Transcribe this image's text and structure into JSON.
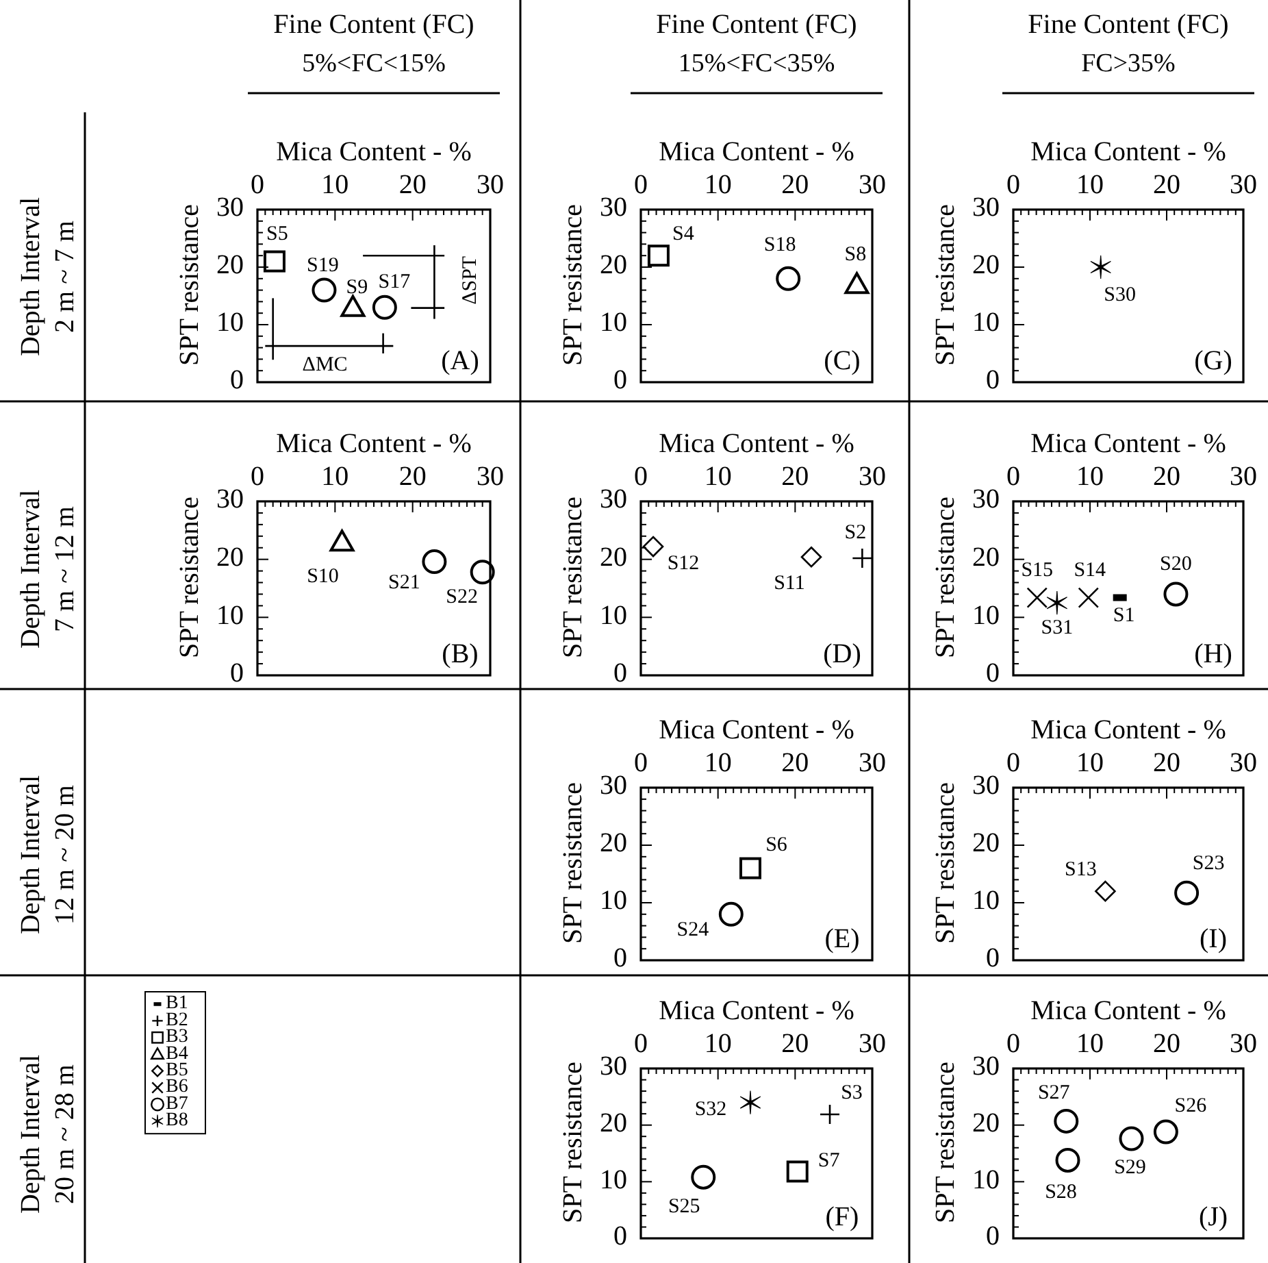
{
  "chart_data": [
    {
      "type": "scatter",
      "title": "Fine Content (FC)",
      "subtitle": "5%<FC<15%",
      "xlabel": "Mica Content - %",
      "ylabel": "SPT resistance",
      "xlim": [
        0,
        30
      ],
      "ylim": [
        0,
        30
      ],
      "xticks": [
        0,
        {
          "value": 1,
          "label": null
        },
        {
          "value": 2,
          "label": null
        },
        {
          "value": 3,
          "label": null
        },
        {
          "value": 4,
          "label": null
        },
        {
          "value": 5,
          "label": null
        },
        {
          "value": 6,
          "label": null
        },
        {
          "value": 7,
          "label": null
        },
        {
          "value": 8,
          "label": null
        },
        {
          "value": 9,
          "label": null
        },
        10,
        {
          "value": 11,
          "label": null
        },
        {
          "value": 12,
          "label": null
        },
        {
          "value": 13,
          "label": null
        },
        {
          "value": 14,
          "label": null
        },
        {
          "value": 15,
          "label": null
        },
        {
          "value": 16,
          "label": null
        },
        {
          "value": 17,
          "label": null
        },
        {
          "value": 18,
          "label": null
        },
        {
          "value": 19,
          "label": null
        },
        20,
        {
          "value": 21,
          "label": null
        },
        {
          "value": 22,
          "label": null
        },
        {
          "value": 23,
          "label": null
        },
        {
          "value": 24,
          "label": null
        },
        {
          "value": 25,
          "label": null
        },
        {
          "value": 26,
          "label": null
        },
        {
          "value": 27,
          "label": null
        },
        {
          "value": 28,
          "label": null
        },
        {
          "value": 29,
          "label": null
        },
        30
      ],
      "yticks": [
        0,
        {
          "value": 2,
          "label": null
        },
        {
          "value": 4,
          "label": null
        },
        {
          "value": 6,
          "label": null
        },
        {
          "value": 8,
          "label": null
        },
        10,
        {
          "value": 12,
          "label": null
        },
        {
          "value": 14,
          "label": null
        },
        {
          "value": 16,
          "label": null
        },
        {
          "value": 18,
          "label": null
        },
        20,
        {
          "value": 22,
          "label": null
        },
        {
          "value": 24,
          "label": null
        },
        {
          "value": 26,
          "label": null
        },
        {
          "value": 28,
          "label": null
        },
        30
      ],
      "series": [
        {
          "marker": "square",
          "color": "#000000",
          "x": [
            2.2
          ],
          "values": [
            21
          ],
          "value_labels": [
            "S5"
          ]
        },
        {
          "marker": "circle",
          "color": "#000000",
          "x": [
            8.6,
            16.4
          ],
          "values": [
            16,
            13
          ],
          "value_labels": [
            "S19",
            "S17"
          ]
        },
        {
          "marker": "triangle",
          "color": "#000000",
          "x": [
            12.3
          ],
          "values": [
            13
          ],
          "value_labels": [
            "S9"
          ]
        },
        {
          "type": "line",
          "marker": "none",
          "color": "#000000",
          "x": [
            1,
            17.5
          ],
          "values": [
            6.3,
            6.3
          ]
        },
        {
          "type": "line",
          "marker": "none",
          "color": "#000000",
          "x": [
            2,
            2
          ],
          "values": [
            3.9,
            14.6
          ]
        },
        {
          "type": "line",
          "marker": "none",
          "color": "#000000",
          "x": [
            16.2,
            16.2
          ],
          "values": [
            5,
            8.5
          ]
        },
        {
          "type": "line",
          "marker": "none",
          "color": "#000000",
          "x": [
            22.8,
            22.8
          ],
          "values": [
            11,
            23.8
          ]
        },
        {
          "type": "line",
          "marker": "none",
          "color": "#000000",
          "x": [
            13.6,
            24.1
          ],
          "values": [
            22,
            22
          ]
        },
        {
          "type": "line",
          "marker": "none",
          "color": "#000000",
          "x": [
            19.8,
            24.1
          ],
          "values": [
            12.9,
            12.9
          ]
        }
      ],
      "annotations": [
        "Depth Interval",
        "2 m ~ 7 m",
        "ΔMC",
        "ΔSPT",
        "(A)"
      ]
    },
    {
      "type": "scatter",
      "title": "Fine Content (FC)",
      "subtitle": "15%<FC<35%",
      "xlabel": "Mica Content - %",
      "ylabel": "SPT resistance",
      "xlim": [
        0,
        30
      ],
      "ylim": [
        0,
        30
      ],
      "xticks": [
        0,
        {
          "value": 1,
          "label": null
        },
        {
          "value": 2,
          "label": null
        },
        {
          "value": 3,
          "label": null
        },
        {
          "value": 4,
          "label": null
        },
        {
          "value": 5,
          "label": null
        },
        {
          "value": 6,
          "label": null
        },
        {
          "value": 7,
          "label": null
        },
        {
          "value": 8,
          "label": null
        },
        {
          "value": 9,
          "label": null
        },
        10,
        {
          "value": 11,
          "label": null
        },
        {
          "value": 12,
          "label": null
        },
        {
          "value": 13,
          "label": null
        },
        {
          "value": 14,
          "label": null
        },
        {
          "value": 15,
          "label": null
        },
        {
          "value": 16,
          "label": null
        },
        {
          "value": 17,
          "label": null
        },
        {
          "value": 18,
          "label": null
        },
        {
          "value": 19,
          "label": null
        },
        20,
        {
          "value": 21,
          "label": null
        },
        {
          "value": 22,
          "label": null
        },
        {
          "value": 23,
          "label": null
        },
        {
          "value": 24,
          "label": null
        },
        {
          "value": 25,
          "label": null
        },
        {
          "value": 26,
          "label": null
        },
        {
          "value": 27,
          "label": null
        },
        {
          "value": 28,
          "label": null
        },
        {
          "value": 29,
          "label": null
        },
        30
      ],
      "yticks": [
        0,
        {
          "value": 2,
          "label": null
        },
        {
          "value": 4,
          "label": null
        },
        {
          "value": 6,
          "label": null
        },
        {
          "value": 8,
          "label": null
        },
        10,
        {
          "value": 12,
          "label": null
        },
        {
          "value": 14,
          "label": null
        },
        {
          "value": 16,
          "label": null
        },
        {
          "value": 18,
          "label": null
        },
        20,
        {
          "value": 22,
          "label": null
        },
        {
          "value": 24,
          "label": null
        },
        {
          "value": 26,
          "label": null
        },
        {
          "value": 28,
          "label": null
        },
        30
      ],
      "series": [
        {
          "marker": "square",
          "color": "#000000",
          "x": [
            2.3
          ],
          "values": [
            22
          ],
          "value_labels": [
            "S4"
          ]
        },
        {
          "marker": "circle",
          "color": "#000000",
          "x": [
            19.1
          ],
          "values": [
            18
          ],
          "value_labels": [
            "S18"
          ]
        },
        {
          "marker": "triangle",
          "color": "#000000",
          "x": [
            28
          ],
          "values": [
            17
          ],
          "value_labels": [
            "S8"
          ]
        }
      ],
      "annotations": [
        "(C)"
      ]
    },
    {
      "type": "scatter",
      "title": "Fine Content (FC)",
      "subtitle": "FC>35%",
      "xlabel": "Mica Content - %",
      "ylabel": "SPT resistance",
      "xlim": [
        0,
        30
      ],
      "ylim": [
        0,
        30
      ],
      "xticks": [
        0,
        {
          "value": 1,
          "label": null
        },
        {
          "value": 2,
          "label": null
        },
        {
          "value": 3,
          "label": null
        },
        {
          "value": 4,
          "label": null
        },
        {
          "value": 5,
          "label": null
        },
        {
          "value": 6,
          "label": null
        },
        {
          "value": 7,
          "label": null
        },
        {
          "value": 8,
          "label": null
        },
        {
          "value": 9,
          "label": null
        },
        10,
        {
          "value": 11,
          "label": null
        },
        {
          "value": 12,
          "label": null
        },
        {
          "value": 13,
          "label": null
        },
        {
          "value": 14,
          "label": null
        },
        {
          "value": 15,
          "label": null
        },
        {
          "value": 16,
          "label": null
        },
        {
          "value": 17,
          "label": null
        },
        {
          "value": 18,
          "label": null
        },
        {
          "value": 19,
          "label": null
        },
        20,
        {
          "value": 21,
          "label": null
        },
        {
          "value": 22,
          "label": null
        },
        {
          "value": 23,
          "label": null
        },
        {
          "value": 24,
          "label": null
        },
        {
          "value": 25,
          "label": null
        },
        {
          "value": 26,
          "label": null
        },
        {
          "value": 27,
          "label": null
        },
        {
          "value": 28,
          "label": null
        },
        {
          "value": 29,
          "label": null
        },
        30
      ],
      "yticks": [
        0,
        {
          "value": 2,
          "label": null
        },
        {
          "value": 4,
          "label": null
        },
        {
          "value": 6,
          "label": null
        },
        {
          "value": 8,
          "label": null
        },
        10,
        {
          "value": 12,
          "label": null
        },
        {
          "value": 14,
          "label": null
        },
        {
          "value": 16,
          "label": null
        },
        {
          "value": 18,
          "label": null
        },
        20,
        {
          "value": 22,
          "label": null
        },
        {
          "value": 24,
          "label": null
        },
        {
          "value": 26,
          "label": null
        },
        {
          "value": 28,
          "label": null
        },
        30
      ],
      "series": [
        {
          "marker": "cross",
          "color": "#000000",
          "x": [
            11.4
          ],
          "values": [
            20
          ],
          "value_labels": [
            "S30"
          ]
        }
      ],
      "annotations": [
        "(G)"
      ]
    },
    {
      "type": "scatter",
      "xlabel": "Mica Content - %",
      "ylabel": "SPT resistance",
      "xlim": [
        0,
        30
      ],
      "ylim": [
        0,
        30
      ],
      "xticks": [
        0,
        {
          "value": 1,
          "label": null
        },
        {
          "value": 2,
          "label": null
        },
        {
          "value": 3,
          "label": null
        },
        {
          "value": 4,
          "label": null
        },
        {
          "value": 5,
          "label": null
        },
        {
          "value": 6,
          "label": null
        },
        {
          "value": 7,
          "label": null
        },
        {
          "value": 8,
          "label": null
        },
        {
          "value": 9,
          "label": null
        },
        10,
        {
          "value": 11,
          "label": null
        },
        {
          "value": 12,
          "label": null
        },
        {
          "value": 13,
          "label": null
        },
        {
          "value": 14,
          "label": null
        },
        {
          "value": 15,
          "label": null
        },
        {
          "value": 16,
          "label": null
        },
        {
          "value": 17,
          "label": null
        },
        {
          "value": 18,
          "label": null
        },
        {
          "value": 19,
          "label": null
        },
        20,
        {
          "value": 21,
          "label": null
        },
        {
          "value": 22,
          "label": null
        },
        {
          "value": 23,
          "label": null
        },
        {
          "value": 24,
          "label": null
        },
        {
          "value": 25,
          "label": null
        },
        {
          "value": 26,
          "label": null
        },
        {
          "value": 27,
          "label": null
        },
        {
          "value": 28,
          "label": null
        },
        {
          "value": 29,
          "label": null
        },
        30
      ],
      "yticks": [
        0,
        {
          "value": 2,
          "label": null
        },
        {
          "value": 4,
          "label": null
        },
        {
          "value": 6,
          "label": null
        },
        {
          "value": 8,
          "label": null
        },
        10,
        {
          "value": 12,
          "label": null
        },
        {
          "value": 14,
          "label": null
        },
        {
          "value": 16,
          "label": null
        },
        {
          "value": 18,
          "label": null
        },
        20,
        {
          "value": 22,
          "label": null
        },
        {
          "value": 24,
          "label": null
        },
        {
          "value": 26,
          "label": null
        },
        {
          "value": 28,
          "label": null
        },
        30
      ],
      "series": [
        {
          "marker": "triangle",
          "color": "#000000",
          "x": [
            10.9
          ],
          "values": [
            23
          ],
          "value_labels": [
            "S10"
          ]
        },
        {
          "marker": "circle",
          "color": "#000000",
          "x": [
            22.8,
            29
          ],
          "values": [
            19.6,
            17.8
          ],
          "value_labels": [
            "S21",
            "S22"
          ]
        }
      ],
      "annotations": [
        "Depth Interval",
        "7 m ~ 12 m",
        "(B)"
      ]
    },
    {
      "type": "scatter",
      "xlabel": "Mica Content - %",
      "ylabel": "SPT resistance",
      "xlim": [
        0,
        30
      ],
      "ylim": [
        0,
        30
      ],
      "xticks": [
        0,
        {
          "value": 1,
          "label": null
        },
        {
          "value": 2,
          "label": null
        },
        {
          "value": 3,
          "label": null
        },
        {
          "value": 4,
          "label": null
        },
        {
          "value": 5,
          "label": null
        },
        {
          "value": 6,
          "label": null
        },
        {
          "value": 7,
          "label": null
        },
        {
          "value": 8,
          "label": null
        },
        {
          "value": 9,
          "label": null
        },
        10,
        {
          "value": 11,
          "label": null
        },
        {
          "value": 12,
          "label": null
        },
        {
          "value": 13,
          "label": null
        },
        {
          "value": 14,
          "label": null
        },
        {
          "value": 15,
          "label": null
        },
        {
          "value": 16,
          "label": null
        },
        {
          "value": 17,
          "label": null
        },
        {
          "value": 18,
          "label": null
        },
        {
          "value": 19,
          "label": null
        },
        20,
        {
          "value": 21,
          "label": null
        },
        {
          "value": 22,
          "label": null
        },
        {
          "value": 23,
          "label": null
        },
        {
          "value": 24,
          "label": null
        },
        {
          "value": 25,
          "label": null
        },
        {
          "value": 26,
          "label": null
        },
        {
          "value": 27,
          "label": null
        },
        {
          "value": 28,
          "label": null
        },
        {
          "value": 29,
          "label": null
        },
        30
      ],
      "yticks": [
        0,
        {
          "value": 2,
          "label": null
        },
        {
          "value": 4,
          "label": null
        },
        {
          "value": 6,
          "label": null
        },
        {
          "value": 8,
          "label": null
        },
        10,
        {
          "value": 12,
          "label": null
        },
        {
          "value": 14,
          "label": null
        },
        {
          "value": 16,
          "label": null
        },
        {
          "value": 18,
          "label": null
        },
        20,
        {
          "value": 22,
          "label": null
        },
        {
          "value": 24,
          "label": null
        },
        {
          "value": 26,
          "label": null
        },
        {
          "value": 28,
          "label": null
        },
        30
      ],
      "series": [
        {
          "marker": "diamond",
          "color": "#000000",
          "x": [
            1.6,
            22.1
          ],
          "values": [
            22.2,
            20.4
          ],
          "value_labels": [
            "S12",
            "S11"
          ]
        },
        {
          "marker": "plus",
          "color": "#000000",
          "x": [
            28.7
          ],
          "values": [
            20.2
          ],
          "value_labels": [
            "S2"
          ]
        }
      ],
      "annotations": [
        "(D)"
      ]
    },
    {
      "type": "scatter",
      "xlabel": "Mica Content - %",
      "ylabel": "SPT resistance",
      "xlim": [
        0,
        30
      ],
      "ylim": [
        0,
        30
      ],
      "xticks": [
        0,
        {
          "value": 1,
          "label": null
        },
        {
          "value": 2,
          "label": null
        },
        {
          "value": 3,
          "label": null
        },
        {
          "value": 4,
          "label": null
        },
        {
          "value": 5,
          "label": null
        },
        {
          "value": 6,
          "label": null
        },
        {
          "value": 7,
          "label": null
        },
        {
          "value": 8,
          "label": null
        },
        {
          "value": 9,
          "label": null
        },
        10,
        {
          "value": 11,
          "label": null
        },
        {
          "value": 12,
          "label": null
        },
        {
          "value": 13,
          "label": null
        },
        {
          "value": 14,
          "label": null
        },
        {
          "value": 15,
          "label": null
        },
        {
          "value": 16,
          "label": null
        },
        {
          "value": 17,
          "label": null
        },
        {
          "value": 18,
          "label": null
        },
        {
          "value": 19,
          "label": null
        },
        20,
        {
          "value": 21,
          "label": null
        },
        {
          "value": 22,
          "label": null
        },
        {
          "value": 23,
          "label": null
        },
        {
          "value": 24,
          "label": null
        },
        {
          "value": 25,
          "label": null
        },
        {
          "value": 26,
          "label": null
        },
        {
          "value": 27,
          "label": null
        },
        {
          "value": 28,
          "label": null
        },
        {
          "value": 29,
          "label": null
        },
        30
      ],
      "yticks": [
        0,
        {
          "value": 2,
          "label": null
        },
        {
          "value": 4,
          "label": null
        },
        {
          "value": 6,
          "label": null
        },
        {
          "value": 8,
          "label": null
        },
        10,
        {
          "value": 12,
          "label": null
        },
        {
          "value": 14,
          "label": null
        },
        {
          "value": 16,
          "label": null
        },
        {
          "value": 18,
          "label": null
        },
        20,
        {
          "value": 22,
          "label": null
        },
        {
          "value": 24,
          "label": null
        },
        {
          "value": 26,
          "label": null
        },
        {
          "value": 28,
          "label": null
        },
        30
      ],
      "series": [
        {
          "marker": "x",
          "color": "#000000",
          "x": [
            3.1,
            9.8
          ],
          "values": [
            13.4,
            13.4
          ],
          "value_labels": [
            "S15",
            "S14"
          ]
        },
        {
          "marker": "cross",
          "color": "#000000",
          "x": [
            5.7
          ],
          "values": [
            12.5
          ],
          "value_labels": [
            "S31"
          ]
        },
        {
          "color": "#000000",
          "x": [
            13.9
          ],
          "values": [
            13.4
          ],
          "value_labels": [
            "S1"
          ]
        },
        {
          "marker": "circle",
          "color": "#000000",
          "x": [
            21.2
          ],
          "values": [
            14
          ],
          "value_labels": [
            "S20"
          ]
        }
      ],
      "annotations": [
        "(H)"
      ]
    },
    {
      "type": "scatter",
      "xlabel": "Mica Content - %",
      "ylabel": "SPT resistance",
      "xlim": [
        0,
        30
      ],
      "ylim": [
        0,
        30
      ],
      "xticks": [
        0,
        {
          "value": 1,
          "label": null
        },
        {
          "value": 2,
          "label": null
        },
        {
          "value": 3,
          "label": null
        },
        {
          "value": 4,
          "label": null
        },
        {
          "value": 5,
          "label": null
        },
        {
          "value": 6,
          "label": null
        },
        {
          "value": 7,
          "label": null
        },
        {
          "value": 8,
          "label": null
        },
        {
          "value": 9,
          "label": null
        },
        10,
        {
          "value": 11,
          "label": null
        },
        {
          "value": 12,
          "label": null
        },
        {
          "value": 13,
          "label": null
        },
        {
          "value": 14,
          "label": null
        },
        {
          "value": 15,
          "label": null
        },
        {
          "value": 16,
          "label": null
        },
        {
          "value": 17,
          "label": null
        },
        {
          "value": 18,
          "label": null
        },
        {
          "value": 19,
          "label": null
        },
        20,
        {
          "value": 21,
          "label": null
        },
        {
          "value": 22,
          "label": null
        },
        {
          "value": 23,
          "label": null
        },
        {
          "value": 24,
          "label": null
        },
        {
          "value": 25,
          "label": null
        },
        {
          "value": 26,
          "label": null
        },
        {
          "value": 27,
          "label": null
        },
        {
          "value": 28,
          "label": null
        },
        {
          "value": 29,
          "label": null
        },
        30
      ],
      "yticks": [
        0,
        {
          "value": 2,
          "label": null
        },
        {
          "value": 4,
          "label": null
        },
        {
          "value": 6,
          "label": null
        },
        {
          "value": 8,
          "label": null
        },
        10,
        {
          "value": 12,
          "label": null
        },
        {
          "value": 14,
          "label": null
        },
        {
          "value": 16,
          "label": null
        },
        {
          "value": 18,
          "label": null
        },
        20,
        {
          "value": 22,
          "label": null
        },
        {
          "value": 24,
          "label": null
        },
        {
          "value": 26,
          "label": null
        },
        {
          "value": 28,
          "label": null
        },
        30
      ],
      "series": [
        {
          "marker": "square",
          "color": "#000000",
          "x": [
            14.2
          ],
          "values": [
            16
          ],
          "value_labels": [
            "S6"
          ]
        },
        {
          "marker": "circle",
          "color": "#000000",
          "x": [
            11.7
          ],
          "values": [
            8
          ],
          "value_labels": [
            "S24"
          ]
        }
      ],
      "annotations": [
        "Depth Interval",
        "12 m ~ 20 m",
        "(E)"
      ]
    },
    {
      "type": "scatter",
      "xlabel": "Mica Content - %",
      "ylabel": "SPT resistance",
      "xlim": [
        0,
        30
      ],
      "ylim": [
        0,
        30
      ],
      "xticks": [
        0,
        {
          "value": 1,
          "label": null
        },
        {
          "value": 2,
          "label": null
        },
        {
          "value": 3,
          "label": null
        },
        {
          "value": 4,
          "label": null
        },
        {
          "value": 5,
          "label": null
        },
        {
          "value": 6,
          "label": null
        },
        {
          "value": 7,
          "label": null
        },
        {
          "value": 8,
          "label": null
        },
        {
          "value": 9,
          "label": null
        },
        10,
        {
          "value": 11,
          "label": null
        },
        {
          "value": 12,
          "label": null
        },
        {
          "value": 13,
          "label": null
        },
        {
          "value": 14,
          "label": null
        },
        {
          "value": 15,
          "label": null
        },
        {
          "value": 16,
          "label": null
        },
        {
          "value": 17,
          "label": null
        },
        {
          "value": 18,
          "label": null
        },
        {
          "value": 19,
          "label": null
        },
        20,
        {
          "value": 21,
          "label": null
        },
        {
          "value": 22,
          "label": null
        },
        {
          "value": 23,
          "label": null
        },
        {
          "value": 24,
          "label": null
        },
        {
          "value": 25,
          "label": null
        },
        {
          "value": 26,
          "label": null
        },
        {
          "value": 27,
          "label": null
        },
        {
          "value": 28,
          "label": null
        },
        {
          "value": 29,
          "label": null
        },
        30
      ],
      "yticks": [
        0,
        {
          "value": 2,
          "label": null
        },
        {
          "value": 4,
          "label": null
        },
        {
          "value": 6,
          "label": null
        },
        {
          "value": 8,
          "label": null
        },
        10,
        {
          "value": 12,
          "label": null
        },
        {
          "value": 14,
          "label": null
        },
        {
          "value": 16,
          "label": null
        },
        {
          "value": 18,
          "label": null
        },
        20,
        {
          "value": 22,
          "label": null
        },
        {
          "value": 24,
          "label": null
        },
        {
          "value": 26,
          "label": null
        },
        {
          "value": 28,
          "label": null
        },
        30
      ],
      "series": [
        {
          "marker": "diamond",
          "color": "#000000",
          "x": [
            12
          ],
          "values": [
            12
          ],
          "value_labels": [
            "S13"
          ]
        },
        {
          "marker": "circle",
          "color": "#000000",
          "x": [
            22.6
          ],
          "values": [
            11.7
          ],
          "value_labels": [
            "S23"
          ]
        }
      ],
      "annotations": [
        "(I)"
      ]
    },
    {
      "type": "scatter",
      "xlabel": "Mica Content - %",
      "ylabel": "SPT resistance",
      "xlim": [
        0,
        30
      ],
      "ylim": [
        0,
        30
      ],
      "legend": "left",
      "xticks": [
        0,
        {
          "value": 1,
          "label": null
        },
        {
          "value": 2,
          "label": null
        },
        {
          "value": 3,
          "label": null
        },
        {
          "value": 4,
          "label": null
        },
        {
          "value": 5,
          "label": null
        },
        {
          "value": 6,
          "label": null
        },
        {
          "value": 7,
          "label": null
        },
        {
          "value": 8,
          "label": null
        },
        {
          "value": 9,
          "label": null
        },
        10,
        {
          "value": 11,
          "label": null
        },
        {
          "value": 12,
          "label": null
        },
        {
          "value": 13,
          "label": null
        },
        {
          "value": 14,
          "label": null
        },
        {
          "value": 15,
          "label": null
        },
        {
          "value": 16,
          "label": null
        },
        {
          "value": 17,
          "label": null
        },
        {
          "value": 18,
          "label": null
        },
        {
          "value": 19,
          "label": null
        },
        20,
        {
          "value": 21,
          "label": null
        },
        {
          "value": 22,
          "label": null
        },
        {
          "value": 23,
          "label": null
        },
        {
          "value": 24,
          "label": null
        },
        {
          "value": 25,
          "label": null
        },
        {
          "value": 26,
          "label": null
        },
        {
          "value": 27,
          "label": null
        },
        {
          "value": 28,
          "label": null
        },
        {
          "value": 29,
          "label": null
        },
        30
      ],
      "yticks": [
        0,
        {
          "value": 2,
          "label": null
        },
        {
          "value": 4,
          "label": null
        },
        {
          "value": 6,
          "label": null
        },
        {
          "value": 8,
          "label": null
        },
        10,
        {
          "value": 12,
          "label": null
        },
        {
          "value": 14,
          "label": null
        },
        {
          "value": 16,
          "label": null
        },
        {
          "value": 18,
          "label": null
        },
        20,
        {
          "value": 22,
          "label": null
        },
        {
          "value": 24,
          "label": null
        },
        {
          "value": 26,
          "label": null
        },
        {
          "value": 28,
          "label": null
        },
        30
      ],
      "series": [
        {
          "name": "B1",
          "color": "#000000"
        },
        {
          "name": "B2",
          "marker": "plus",
          "color": "#000000",
          "x": [
            24.5
          ],
          "values": [
            21.9
          ],
          "value_labels": [
            "S3"
          ]
        },
        {
          "name": "B3",
          "marker": "square",
          "color": "#000000",
          "x": [
            20.3
          ],
          "values": [
            11.8
          ],
          "value_labels": [
            "S7"
          ]
        },
        {
          "name": "B4",
          "marker": "triangle",
          "color": "#000000"
        },
        {
          "name": "B5",
          "marker": "diamond",
          "color": "#000000"
        },
        {
          "name": "B6",
          "marker": "x",
          "color": "#000000"
        },
        {
          "name": "B7",
          "marker": "circle",
          "color": "#000000",
          "x": [
            8.1
          ],
          "values": [
            10.8
          ],
          "value_labels": [
            "S25"
          ]
        },
        {
          "name": "B8",
          "marker": "cross",
          "color": "#000000",
          "x": [
            14.2
          ],
          "values": [
            24
          ],
          "value_labels": [
            "S32"
          ]
        }
      ],
      "annotations": [
        "Depth Interval",
        "20 m ~ 28 m",
        "(F)"
      ]
    },
    {
      "type": "scatter",
      "xlabel": "Mica Content - %",
      "ylabel": "SPT resistance",
      "xlim": [
        0,
        30
      ],
      "ylim": [
        0,
        30
      ],
      "xticks": [
        0,
        {
          "value": 1,
          "label": null
        },
        {
          "value": 2,
          "label": null
        },
        {
          "value": 3,
          "label": null
        },
        {
          "value": 4,
          "label": null
        },
        {
          "value": 5,
          "label": null
        },
        {
          "value": 6,
          "label": null
        },
        {
          "value": 7,
          "label": null
        },
        {
          "value": 8,
          "label": null
        },
        {
          "value": 9,
          "label": null
        },
        10,
        {
          "value": 11,
          "label": null
        },
        {
          "value": 12,
          "label": null
        },
        {
          "value": 13,
          "label": null
        },
        {
          "value": 14,
          "label": null
        },
        {
          "value": 15,
          "label": null
        },
        {
          "value": 16,
          "label": null
        },
        {
          "value": 17,
          "label": null
        },
        {
          "value": 18,
          "label": null
        },
        {
          "value": 19,
          "label": null
        },
        20,
        {
          "value": 21,
          "label": null
        },
        {
          "value": 22,
          "label": null
        },
        {
          "value": 23,
          "label": null
        },
        {
          "value": 24,
          "label": null
        },
        {
          "value": 25,
          "label": null
        },
        {
          "value": 26,
          "label": null
        },
        {
          "value": 27,
          "label": null
        },
        {
          "value": 28,
          "label": null
        },
        {
          "value": 29,
          "label": null
        },
        30
      ],
      "yticks": [
        0,
        {
          "value": 2,
          "label": null
        },
        {
          "value": 4,
          "label": null
        },
        {
          "value": 6,
          "label": null
        },
        {
          "value": 8,
          "label": null
        },
        10,
        {
          "value": 12,
          "label": null
        },
        {
          "value": 14,
          "label": null
        },
        {
          "value": 16,
          "label": null
        },
        {
          "value": 18,
          "label": null
        },
        20,
        {
          "value": 22,
          "label": null
        },
        {
          "value": 24,
          "label": null
        },
        {
          "value": 26,
          "label": null
        },
        {
          "value": 28,
          "label": null
        },
        30
      ],
      "series": [
        {
          "marker": "circle",
          "color": "#000000",
          "x": [
            6.9,
            7.1,
            15.4,
            19.9
          ],
          "values": [
            20.7,
            13.8,
            17.6,
            18.8
          ],
          "value_labels": [
            "S27",
            "S28",
            "S29",
            "S26"
          ]
        }
      ],
      "annotations": [
        "(J)"
      ]
    }
  ]
}
